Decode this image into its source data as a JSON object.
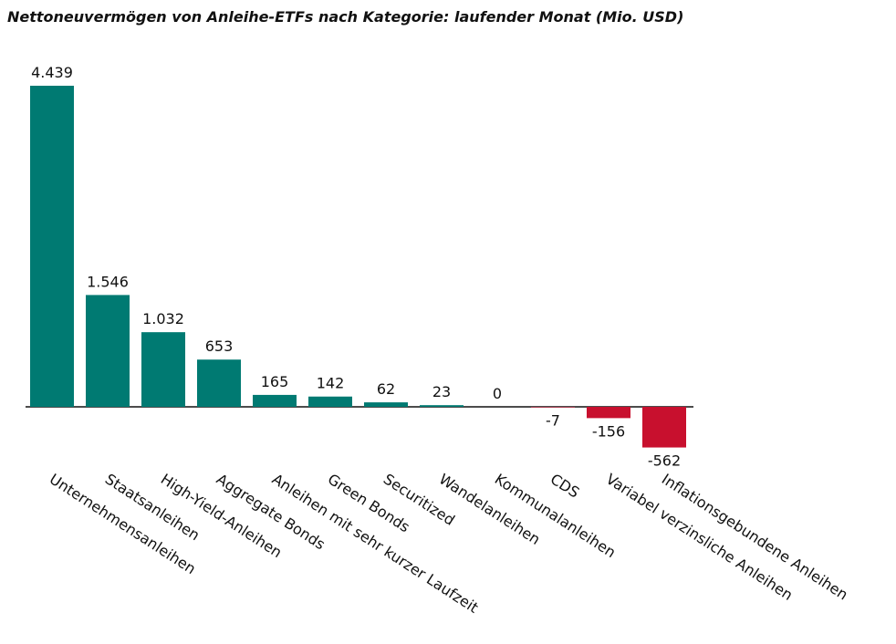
{
  "chart_data": {
    "type": "bar",
    "title": "Nettoneuvermögen von Anleihe-ETFs nach Kategorie: laufender Monat (Mio. USD)",
    "categories": [
      "Unternehmensanleihen",
      "Staatsanleihen",
      "High-Yield-Anleihen",
      "Aggregate Bonds",
      "Anleihen mit sehr kurzer Laufzeit",
      "Green Bonds",
      "Securitized",
      "Wandelanleihen",
      "Kommunalanleihen",
      "CDS",
      "Variabel verzinsliche Anleihen",
      "Inflationsgebundene Anleihen"
    ],
    "values": [
      4439,
      1546,
      1032,
      653,
      165,
      142,
      62,
      23,
      0,
      -7,
      -156,
      -562
    ],
    "value_labels": [
      "4.439",
      "1.546",
      "1.032",
      "653",
      "165",
      "142",
      "62",
      "23",
      "0",
      "-7",
      "-156",
      "-562"
    ],
    "color": "#007a72",
    "negative_color": "#c8102e"
  }
}
